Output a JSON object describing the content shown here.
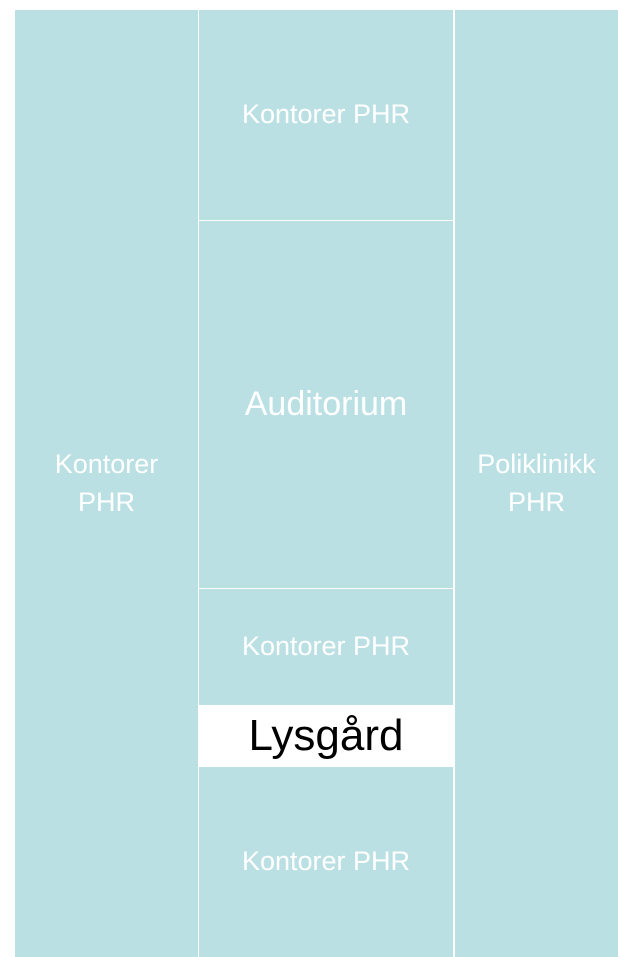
{
  "rooms": [
    {
      "label": "Kontorer PHR"
    },
    {
      "label": "Kontorer PHR"
    },
    {
      "label": "Auditorium"
    },
    {
      "label": "Kontorer PHR"
    },
    {
      "label": "Lysgård"
    },
    {
      "label": "Kontorer PHR"
    },
    {
      "label": "Poliklinikk PHR"
    }
  ]
}
